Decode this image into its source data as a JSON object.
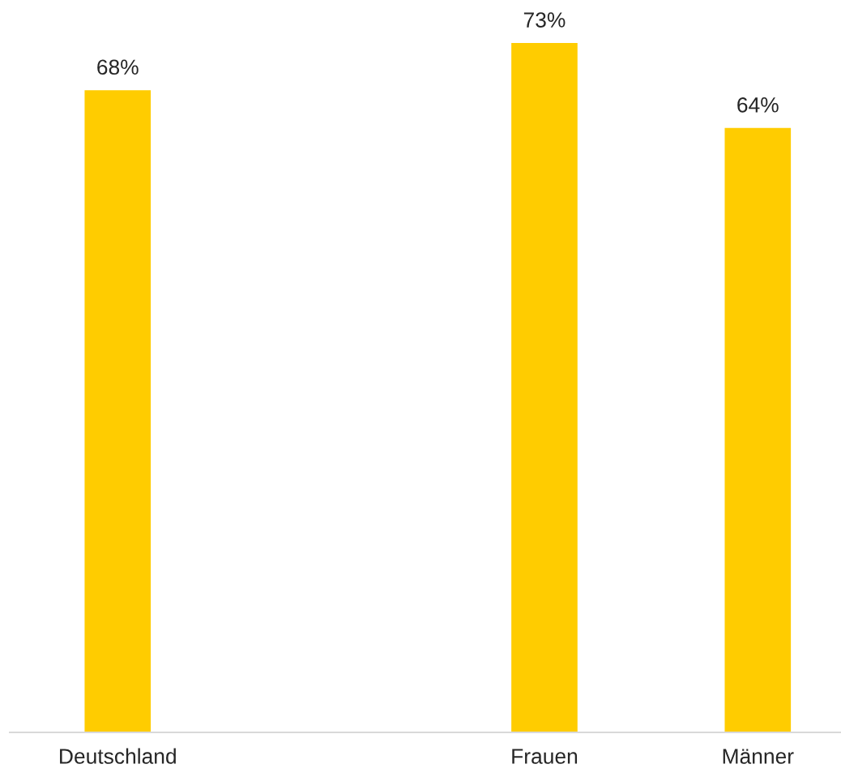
{
  "chart_data": {
    "type": "bar",
    "categories": [
      "Deutschland",
      null,
      "Frauen",
      "Männer"
    ],
    "values": [
      68,
      null,
      73,
      64
    ],
    "value_labels": [
      "68%",
      null,
      "73%",
      "64%"
    ],
    "color": "#ffcc00",
    "tick_labels": "x",
    "grid": false,
    "legend": false
  }
}
